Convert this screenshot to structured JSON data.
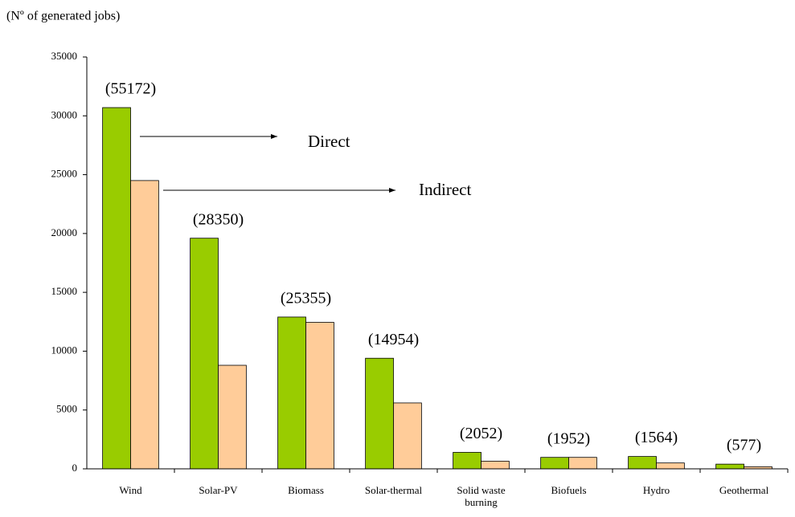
{
  "chart_data": {
    "type": "bar",
    "ylabel": "(Nº of generated jobs)",
    "categories": [
      "Wind",
      "Solar-PV",
      "Biomass",
      "Solar-thermal",
      "Solid waste burning",
      "Biofuels",
      "Hydro",
      "Geothermal"
    ],
    "series": [
      {
        "name": "Direct",
        "color": "#99cc00",
        "values": [
          30700,
          19600,
          12900,
          9400,
          1400,
          975,
          1050,
          400
        ]
      },
      {
        "name": "Indirect",
        "color": "#ffcc99",
        "values": [
          24500,
          8800,
          12450,
          5600,
          650,
          975,
          500,
          180
        ]
      }
    ],
    "total_labels": [
      "(55172)",
      "(28350)",
      "(25355)",
      "(14954)",
      "(2052)",
      "(1952)",
      "(1564)",
      "(577)"
    ],
    "ylim": [
      0,
      35000
    ],
    "yticks": [
      0,
      5000,
      10000,
      15000,
      20000,
      25000,
      30000,
      35000
    ]
  }
}
